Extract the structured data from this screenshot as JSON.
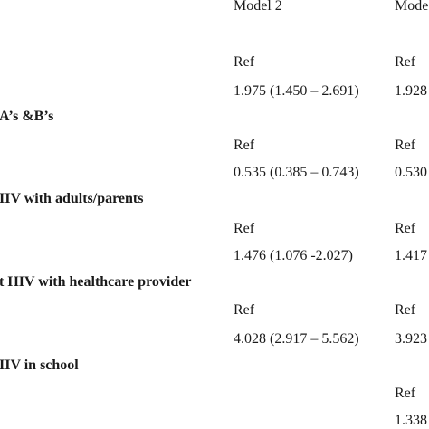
{
  "table": {
    "headers": {
      "model2": "Model 2",
      "model3": "Mode"
    },
    "sections": [
      {
        "label": "",
        "rows": [
          {
            "model2": "Ref",
            "model3": "Ref"
          },
          {
            "model2": "1.975 (1.450 – 2.691)",
            "model3": "1.928"
          }
        ]
      },
      {
        "label": "A’s &B’s",
        "rows": [
          {
            "model2": "Ref",
            "model3": "Ref"
          },
          {
            "model2": "0.535 (0.385 – 0.743)",
            "model3": "0.530"
          }
        ]
      },
      {
        "label": "IIV with adults/parents",
        "rows": [
          {
            "model2": "Ref",
            "model3": "Ref"
          },
          {
            "model2": "1.476 (1.076 -2.027)",
            "model3": "1.417"
          }
        ]
      },
      {
        "label": "t HIV with healthcare provider",
        "rows": [
          {
            "model2": "Ref",
            "model3": "Ref"
          },
          {
            "model2": "4.028 (2.917 – 5.562)",
            "model3": "3.923"
          }
        ]
      },
      {
        "label": "IIV in school",
        "rows": [
          {
            "model2": "",
            "model3": "Ref"
          },
          {
            "model2": "",
            "model3": "1.338"
          }
        ]
      }
    ]
  }
}
